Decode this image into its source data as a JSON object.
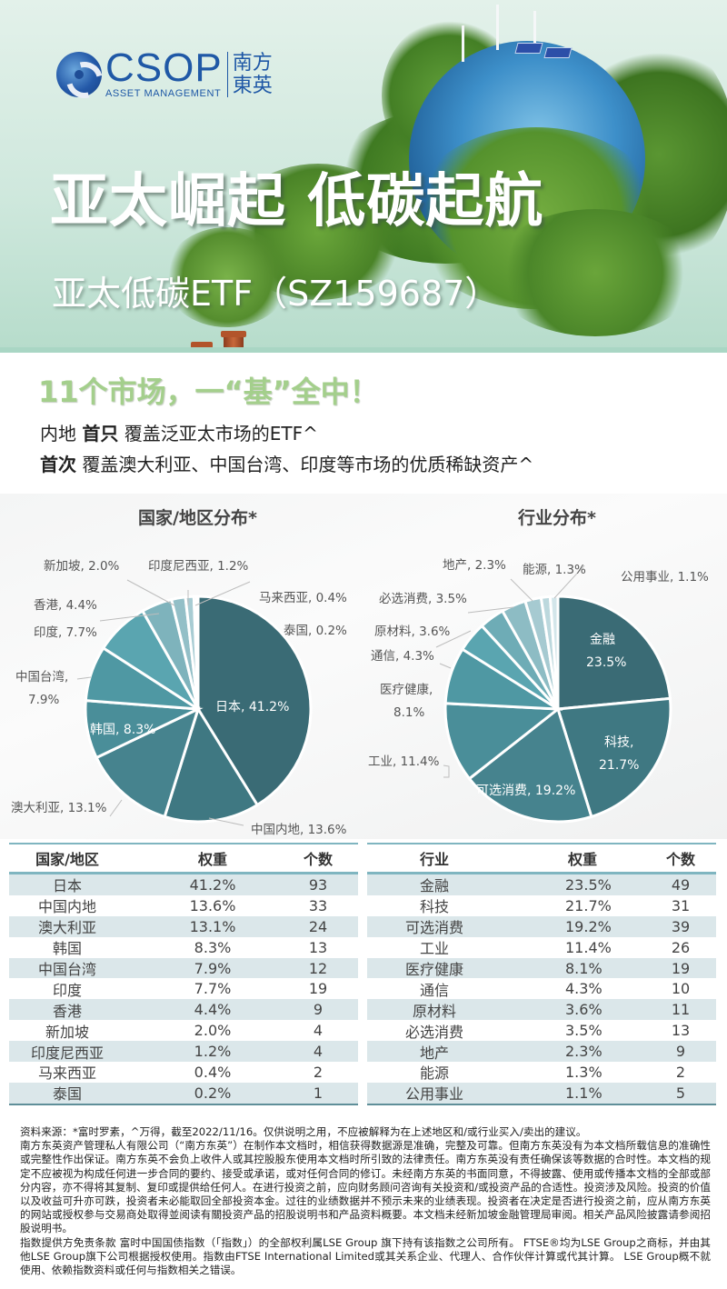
{
  "brand": {
    "name_en": "CSOP",
    "subtitle_en": "ASSET MANAGEMENT",
    "name_cn_line1": "南方",
    "name_cn_line2": "東英"
  },
  "hero": {
    "title": "亚太崛起 低碳起航",
    "subtitle": "亚太低碳ETF（SZ159687）"
  },
  "headline": "11个市场，一“基”全中！",
  "taglines": [
    {
      "prefix": "内地 ",
      "bold": "首只",
      "text": " 覆盖泛亚太市场的ETF^"
    },
    {
      "prefix": "",
      "bold": "首次",
      "text": " 覆盖澳大利亚、中国台湾、印度等市场的优质稀缺资产^"
    }
  ],
  "colors": {
    "accent_green": "#a4cf8c",
    "brand_blue": "#1f58a6",
    "table_stripe": "#dbe7ea",
    "table_rule": "#7fb5c0"
  },
  "chart_data": [
    {
      "type": "pie",
      "title": "国家/地区分布*",
      "categories": [
        "日本",
        "中国内地",
        "澳大利亚",
        "韩国",
        "中国台湾",
        "印度",
        "香港",
        "新加坡",
        "印度尼西亚",
        "马来西亚",
        "泰国"
      ],
      "values": [
        41.2,
        13.6,
        13.1,
        8.3,
        7.9,
        7.7,
        4.4,
        2.0,
        1.2,
        0.4,
        0.2
      ],
      "labels": [
        "日本, 41.2%",
        "中国内地, 13.6%",
        "澳大利亚, 13.1%",
        "韩国, 8.3%",
        "中国台湾,",
        "印度, 7.7%",
        "香港, 4.4%",
        "新加坡, 2.0%",
        "印度尼西亚, 1.2%",
        "马来西亚, 0.4%",
        "泰国, 0.2%"
      ],
      "label_extra": {
        "taiwan_value": "7.9%"
      },
      "colors": [
        "#3a6b75",
        "#3f7882",
        "#46838e",
        "#4a8e99",
        "#4f98a3",
        "#5aa5b0",
        "#7eb3bc",
        "#93bfc7",
        "#a8ccd3",
        "#bcd8dd",
        "#d3e6ea"
      ],
      "unit": "%"
    },
    {
      "type": "pie",
      "title": "行业分布*",
      "categories": [
        "金融",
        "科技",
        "可选消费",
        "工业",
        "医疗健康",
        "通信",
        "原材料",
        "必选消费",
        "地产",
        "能源",
        "公用事业"
      ],
      "values": [
        23.5,
        21.7,
        19.2,
        11.4,
        8.1,
        4.3,
        3.6,
        3.5,
        2.3,
        1.3,
        1.1
      ],
      "labels": [
        "金融",
        "科技,",
        "可选消费, 19.2%",
        "工业, 11.4%",
        "医疗健康,",
        "通信, 4.3%",
        "原材料, 3.6%",
        "必选消费, 3.5%",
        "地产, 2.3%",
        "能源, 1.3%",
        "公用事业, 1.1%"
      ],
      "label_extra": {
        "finance_value": "23.5%",
        "tech_value": "21.7%",
        "health_value": "8.1%"
      },
      "colors": [
        "#3a6b75",
        "#3f7882",
        "#46838e",
        "#4a8e99",
        "#4f98a3",
        "#5aa5b0",
        "#6eacb6",
        "#8dbcc4",
        "#a6cad1",
        "#bcd8dd",
        "#d3e6ea"
      ],
      "unit": "%"
    }
  ],
  "region_table": {
    "headers": [
      "国家/地区",
      "权重",
      "个数"
    ],
    "rows": [
      [
        "日本",
        "41.2%",
        "93"
      ],
      [
        "中国内地",
        "13.6%",
        "33"
      ],
      [
        "澳大利亚",
        "13.1%",
        "24"
      ],
      [
        "韩国",
        "8.3%",
        "13"
      ],
      [
        "中国台湾",
        "7.9%",
        "12"
      ],
      [
        "印度",
        "7.7%",
        "19"
      ],
      [
        "香港",
        "4.4%",
        "9"
      ],
      [
        "新加坡",
        "2.0%",
        "4"
      ],
      [
        "印度尼西亚",
        "1.2%",
        "4"
      ],
      [
        "马来西亚",
        "0.4%",
        "2"
      ],
      [
        "泰国",
        "0.2%",
        "1"
      ]
    ]
  },
  "sector_table": {
    "headers": [
      "行业",
      "权重",
      "个数"
    ],
    "rows": [
      [
        "金融",
        "23.5%",
        "49"
      ],
      [
        "科技",
        "21.7%",
        "31"
      ],
      [
        "可选消费",
        "19.2%",
        "39"
      ],
      [
        "工业",
        "11.4%",
        "26"
      ],
      [
        "医疗健康",
        "8.1%",
        "19"
      ],
      [
        "通信",
        "4.3%",
        "10"
      ],
      [
        "原材料",
        "3.6%",
        "11"
      ],
      [
        "必选消费",
        "3.5%",
        "13"
      ],
      [
        "地产",
        "2.3%",
        "9"
      ],
      [
        "能源",
        "1.3%",
        "2"
      ],
      [
        "公用事业",
        "1.1%",
        "5"
      ]
    ]
  },
  "disclaimer": [
    "资料来源：*富时罗素，^万得，截至2022/11/16。仅供说明之用，不应被解释为在上述地区和/或行业买入/卖出的建议。",
    "南方东英资产管理私人有限公司（“南方东英”）在制作本文档时，相信获得数据源是准确，完整及可靠。但南方东英没有为本文档所载信息的准确性或完整性作出保证。南方东英不会负上收件人或其控股股东使用本文档时所引致的法律责任。南方东英没有责任确保该等数据的合时性。本文档的规定不应被视为构成任何进一步合同的要约、接受或承诺，或对任何合同的修订。未经南方东英的书面同意，不得披露、使用或传播本文档的全部或部分内容，亦不得将其复制、复印或提供给任何人。在进行投资之前，应向财务顾问咨询有关投资和/或投资产品的合适性。投资涉及风险。投资的价值以及收益可升亦可跌，投资者未必能取回全部投资本金。过往的业绩数据并不预示未来的业绩表现。投资者在决定是否进行投资之前，应从南方东英的网站或授权参与交易商处取得並阅读有關投资产品的招股说明书和产品资料概要。本文档未经新加坡金融管理局审阅。相关产品风险披露请参阅招股说明书。",
    "指数提供方免责条款 富时中国国债指数（「指数」）的全部权利属LSE Group 旗下持有该指数之公司所有。 FTSE®均为LSE Group之商标，并由其他LSE Group旗下公司根据授权使用。指数由FTSE International Limited或其关系企业、代理人、合作伙伴计算或代其计算。 LSE Group概不就使用、依赖指数资料或任何与指数相关之错误。"
  ]
}
